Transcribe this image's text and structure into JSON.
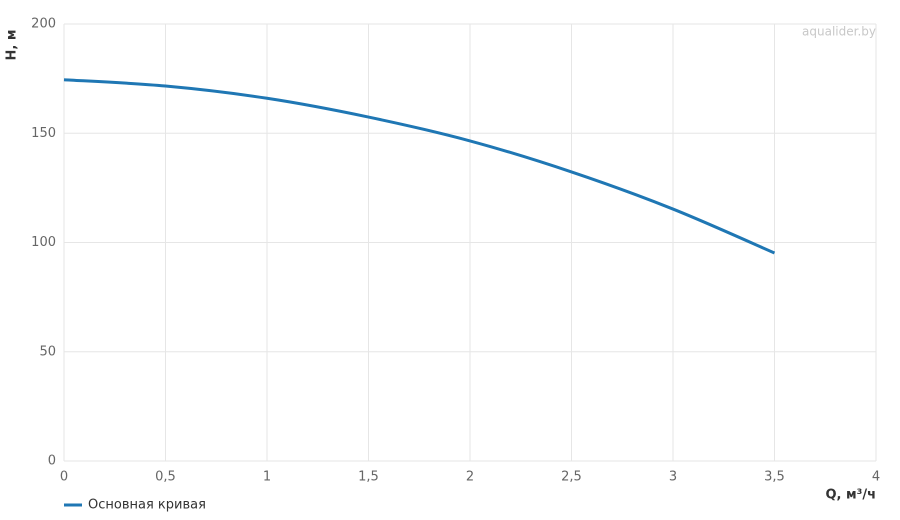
{
  "chart_data": {
    "type": "line",
    "x_label": "Q, м³/ч",
    "y_label": "H, м",
    "watermark": "aqualider.by",
    "x": [
      0,
      0.5,
      1,
      1.5,
      2,
      2.5,
      3,
      3.5
    ],
    "series": [
      {
        "name": "Основная кривая",
        "color": "#1f77b4",
        "values": [
          174.5,
          171.6,
          166,
          157.4,
          146.5,
          132.3,
          115.3,
          95.2
        ]
      }
    ],
    "xlim": [
      0,
      4
    ],
    "xticks": [
      0,
      {
        "value": 0.5,
        "label": "0,5"
      },
      1,
      {
        "value": 1.5,
        "label": "1,5"
      },
      2,
      {
        "value": 2.5,
        "label": "2,5"
      },
      3,
      {
        "value": 3.5,
        "label": "3,5"
      },
      4
    ],
    "ylim": [
      0,
      200
    ],
    "yticks": [
      0,
      50,
      100,
      150,
      200
    ],
    "grid": true
  }
}
